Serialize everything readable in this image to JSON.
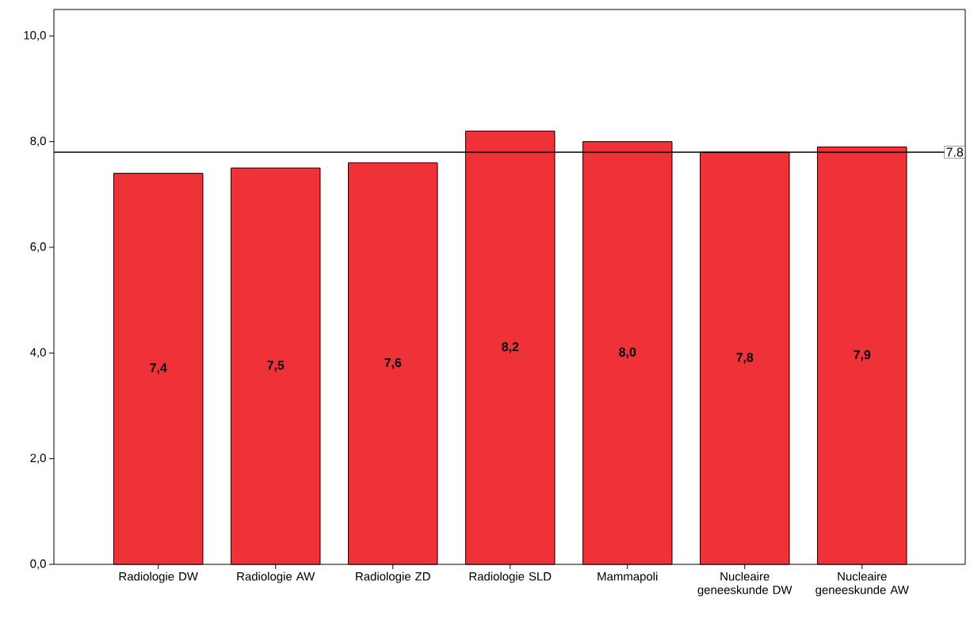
{
  "chart_data": {
    "type": "bar",
    "categories": [
      "Radiologie DW",
      "Radiologie AW",
      "Radiologie ZD",
      "Radiologie SLD",
      "Mammapoli",
      "Nucleaire geneeskunde DW",
      "Nucleaire geneeskunde AW"
    ],
    "values": [
      7.4,
      7.5,
      7.6,
      8.2,
      8.0,
      7.8,
      7.9
    ],
    "value_labels": [
      "7,4",
      "7,5",
      "7,6",
      "8,2",
      "8,0",
      "7,8",
      "7,9"
    ],
    "color": "#ee3238",
    "ylim": [
      0,
      10.5
    ],
    "yticks": [
      {
        "value": 0,
        "label": "0,0"
      },
      {
        "value": 2,
        "label": "2,0"
      },
      {
        "value": 4,
        "label": "4,0"
      },
      {
        "value": 6,
        "label": "6,0"
      },
      {
        "value": 8,
        "label": "8,0"
      },
      {
        "value": 10,
        "label": "10,0"
      }
    ],
    "ref_lines": [
      {
        "axis": "y",
        "value": 7.8,
        "label": "7.8"
      }
    ]
  }
}
